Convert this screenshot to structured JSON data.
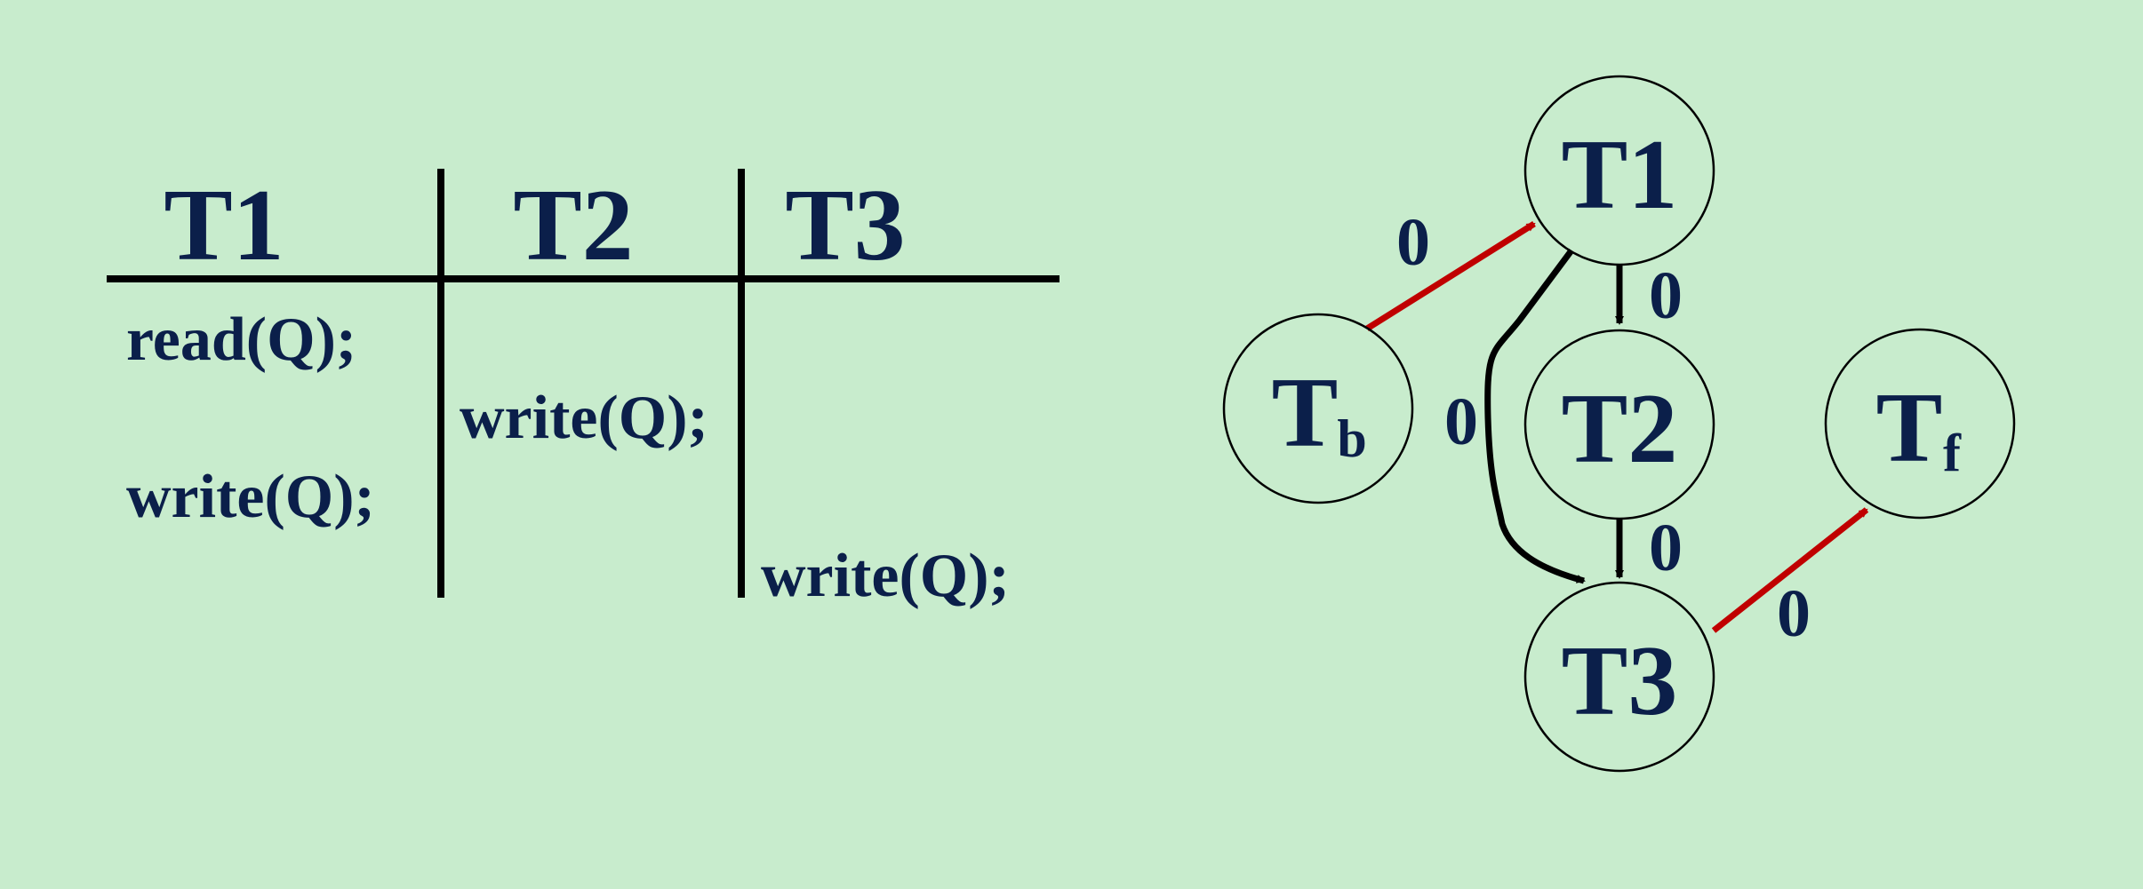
{
  "schedule": {
    "headers": [
      "T1",
      "T2",
      "T3"
    ],
    "operations": [
      {
        "txn": "T1",
        "text": "read(Q);"
      },
      {
        "txn": "T2",
        "text": "write(Q);"
      },
      {
        "txn": "T1",
        "text": "write(Q);"
      },
      {
        "txn": "T3",
        "text": "write(Q);"
      }
    ]
  },
  "graph": {
    "nodes": [
      {
        "id": "T1",
        "label": "T1",
        "sub": ""
      },
      {
        "id": "T2",
        "label": "T2",
        "sub": ""
      },
      {
        "id": "T3",
        "label": "T3",
        "sub": ""
      },
      {
        "id": "Tb",
        "label": "T",
        "sub": "b"
      },
      {
        "id": "Tf",
        "label": "T",
        "sub": "f"
      }
    ],
    "edges": [
      {
        "from": "Tb",
        "to": "T1",
        "label": "0",
        "color": "#c00000"
      },
      {
        "from": "T1",
        "to": "T2",
        "label": "0",
        "color": "#000000"
      },
      {
        "from": "T1",
        "to": "T3",
        "label": "0",
        "color": "#000000"
      },
      {
        "from": "T2",
        "to": "T3",
        "label": "0",
        "color": "#000000"
      },
      {
        "from": "T3",
        "to": "Tf",
        "label": "0",
        "color": "#c00000"
      }
    ]
  },
  "colors": {
    "background": "#c8eccd",
    "text": "#0b1f4a",
    "red_edge": "#c00000",
    "black_edge": "#000000"
  }
}
